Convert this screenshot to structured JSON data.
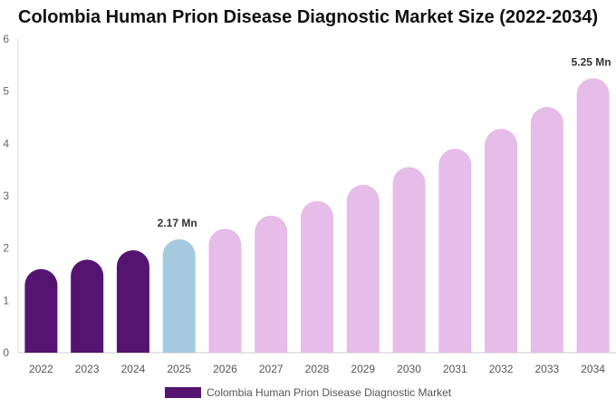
{
  "title": "Colombia Human Prion Disease Diagnostic Market Size (2022-2034)",
  "colors": {
    "historical": "#541470",
    "base_year": "#a5cadf",
    "forecast": "#e6bce8"
  },
  "legend": {
    "label": "Colombia Human Prion Disease Diagnostic Market",
    "color": "#541470"
  },
  "chart_data": {
    "type": "bar",
    "title": "Colombia Human Prion Disease Diagnostic Market Size (2022-2034)",
    "xlabel": "",
    "ylabel": "",
    "ylim": [
      0,
      6
    ],
    "yticks": [
      0,
      1,
      2,
      3,
      4,
      5,
      6
    ],
    "categories": [
      "2022",
      "2023",
      "2024",
      "2025",
      "2026",
      "2027",
      "2028",
      "2029",
      "2030",
      "2031",
      "2032",
      "2033",
      "2034"
    ],
    "series": [
      {
        "name": "Colombia Human Prion Disease Diagnostic Market",
        "values": [
          1.6,
          1.78,
          1.96,
          2.17,
          2.37,
          2.62,
          2.9,
          3.21,
          3.55,
          3.9,
          4.28,
          4.7,
          5.25
        ]
      }
    ],
    "bar_groups": [
      "historical",
      "historical",
      "historical",
      "base_year",
      "forecast",
      "forecast",
      "forecast",
      "forecast",
      "forecast",
      "forecast",
      "forecast",
      "forecast",
      "forecast"
    ],
    "data_labels": [
      {
        "category": "2025",
        "text": "2.17 Mn"
      },
      {
        "category": "2034",
        "text": "5.25 Mn"
      }
    ],
    "grid": false,
    "legend_position": "bottom-center"
  }
}
